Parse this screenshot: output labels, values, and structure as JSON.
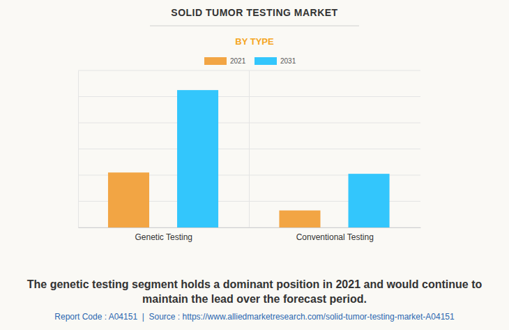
{
  "chart_data": {
    "type": "bar",
    "title": "SOLID TUMOR TESTING MARKET",
    "subtitle": "BY TYPE",
    "categories": [
      "Genetic Testing",
      "Conventional Testing"
    ],
    "series": [
      {
        "name": "2021",
        "color": "#f2a544",
        "values": [
          2.1,
          0.65
        ]
      },
      {
        "name": "2031",
        "color": "#33c6fc",
        "values": [
          5.25,
          2.05
        ]
      }
    ],
    "ylim": [
      0,
      6
    ],
    "yticks": [
      0,
      1,
      2,
      3,
      4,
      5,
      6
    ],
    "grid": true,
    "tick_labels": "x",
    "legend": "top",
    "annotations": [
      "The genetic testing segment holds a dominant position in 2021 and would continue to maintain the lead over the forecast period.",
      "Report Code : A04151  |  Source : https://www.alliedmarketresearch.com/solid-tumor-testing-market-A04151"
    ]
  }
}
